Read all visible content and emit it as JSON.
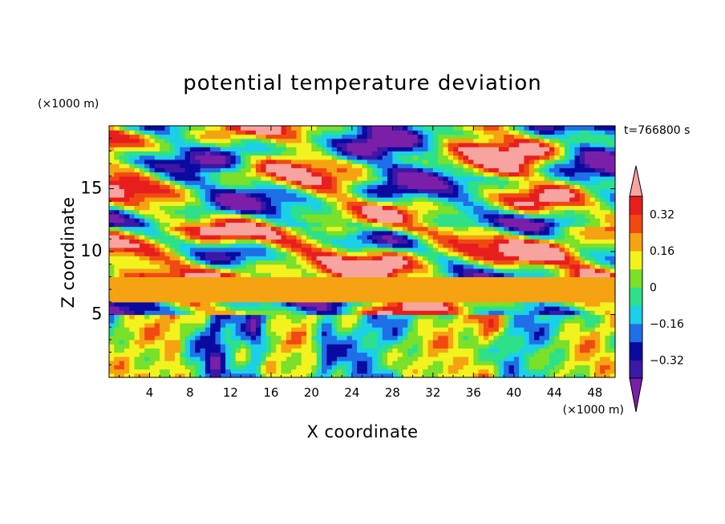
{
  "chart_data": {
    "type": "heatmap",
    "title": "potential temperature deviation",
    "xlabel": "X coordinate",
    "ylabel": "Z coordinate",
    "x_unit_label": "(×1000 m)",
    "y_unit_label": "(×1000 m)",
    "time_label": "t=766800 s",
    "xlim": [
      0,
      50
    ],
    "ylim": [
      0,
      20
    ],
    "x_ticks": [
      "4",
      "8",
      "12",
      "16",
      "20",
      "24",
      "28",
      "32",
      "36",
      "40",
      "44",
      "48"
    ],
    "y_ticks": [
      "5",
      "10",
      "15"
    ],
    "x_tick_values": [
      4,
      8,
      12,
      16,
      20,
      24,
      28,
      32,
      36,
      40,
      44,
      48
    ],
    "y_tick_values": [
      5,
      10,
      15
    ],
    "colorbar": {
      "levels": [
        -0.4,
        -0.32,
        -0.24,
        -0.16,
        -0.08,
        0,
        0.08,
        0.16,
        0.24,
        0.32,
        0.4
      ],
      "labels": [
        "0.32",
        "0.16",
        "0",
        "−0.16",
        "−0.32"
      ],
      "label_values": [
        0.32,
        0.16,
        0,
        -0.16,
        -0.32
      ],
      "colors": [
        "#7b1fa8",
        "#3c18a6",
        "#0a0aa0",
        "#1f6fe8",
        "#1bd0e8",
        "#2ee08a",
        "#7ae02a",
        "#f2f21e",
        "#f5a312",
        "#f04a12",
        "#e81e1e",
        "#f7a4a0"
      ],
      "extend": "both"
    }
  }
}
